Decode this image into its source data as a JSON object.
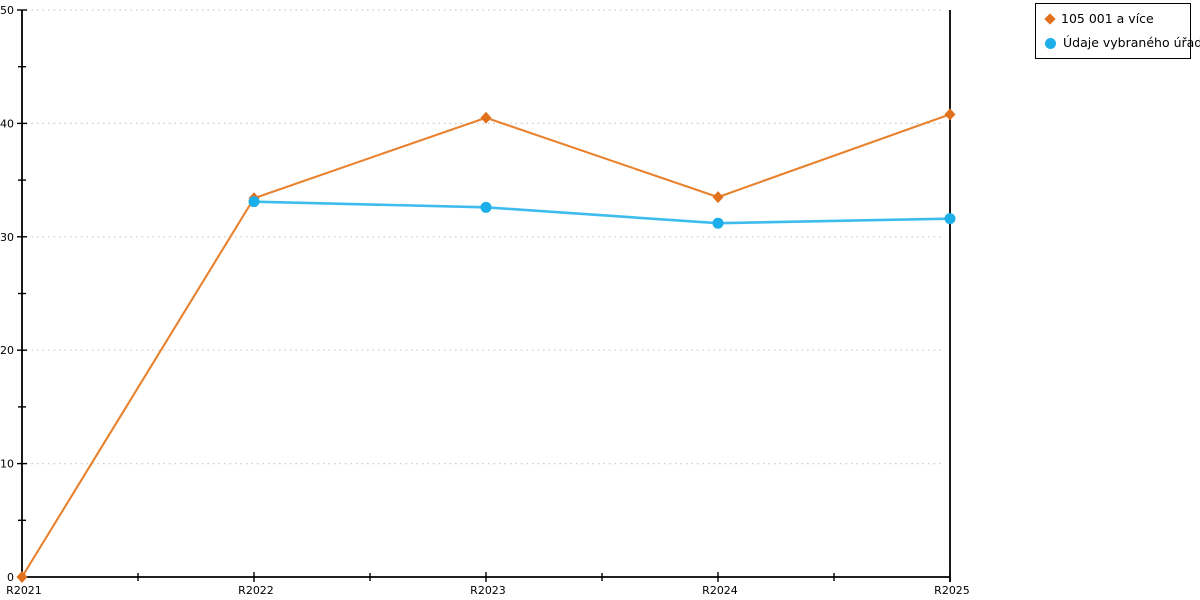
{
  "chart_data": {
    "type": "line",
    "title": "",
    "xlabel": "",
    "ylabel": "",
    "categories": [
      "R2021",
      "R2022",
      "R2023",
      "R2024",
      "R2025"
    ],
    "series": [
      {
        "name": "105 001 a více",
        "marker": "diamond",
        "color": "#e2711d",
        "line_color": "#e8822d",
        "values": [
          0,
          33.4,
          40.5,
          33.5,
          40.8
        ]
      },
      {
        "name": "Údaje vybraného úřadu",
        "marker": "circle",
        "color": "#1caee8",
        "line_color": "#3fbcee",
        "values": [
          null,
          33.1,
          32.6,
          31.2,
          31.6
        ]
      }
    ],
    "ylim": [
      0,
      50
    ],
    "ytick_major_step": 10,
    "ytick_minor_step": 5,
    "yticklabels": [
      "0",
      "10",
      "20",
      "30",
      "40",
      "50"
    ],
    "grid": "horizontal-dotted",
    "grid_color": "#c9c9c9",
    "axis_color": "#000000",
    "legend_position": "top-right"
  }
}
